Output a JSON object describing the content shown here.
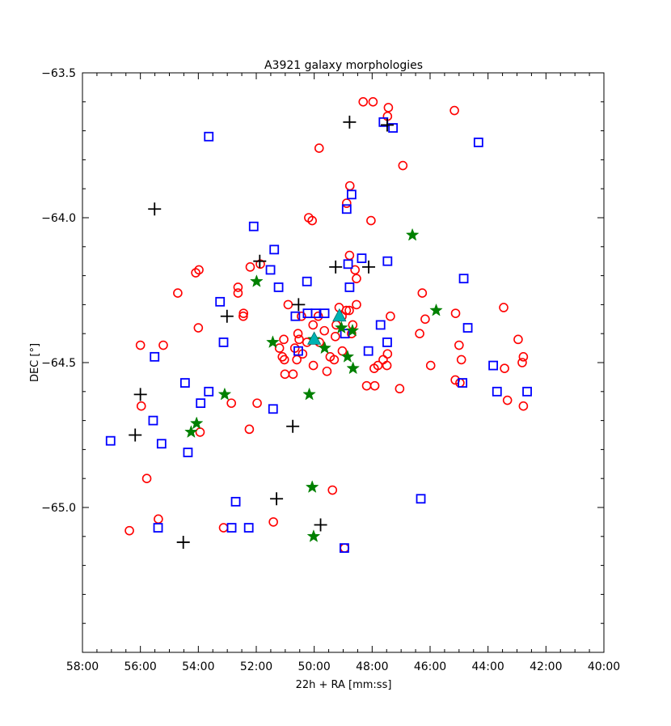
{
  "chart_data": {
    "type": "scatter",
    "title": "A3921 galaxy morphologies",
    "xlabel": "22h + RA [mm:ss]",
    "ylabel": "DEC [°]",
    "xlim_minutes": [
      58,
      40
    ],
    "ylim": [
      -65.5,
      -63.5
    ],
    "x_ticks": [
      {
        "value": 58,
        "label": "58:00"
      },
      {
        "value": 56,
        "label": "56:00"
      },
      {
        "value": 54,
        "label": "54:00"
      },
      {
        "value": 52,
        "label": "52:00"
      },
      {
        "value": 50,
        "label": "50:00"
      },
      {
        "value": 48,
        "label": "48:00"
      },
      {
        "value": 46,
        "label": "46:00"
      },
      {
        "value": 44,
        "label": "44:00"
      },
      {
        "value": 42,
        "label": "42:00"
      },
      {
        "value": 40,
        "label": "40:00"
      }
    ],
    "y_ticks": [
      {
        "value": -63.5,
        "label": "−63.5"
      },
      {
        "value": -64.0,
        "label": "−64.0"
      },
      {
        "value": -64.5,
        "label": "−64.5"
      },
      {
        "value": -65.0,
        "label": "−65.0"
      }
    ],
    "grid": false,
    "legend": "none",
    "series": [
      {
        "marker": "circle",
        "color": "#ff0000",
        "points": [
          [
            48.31,
            -63.6
          ],
          [
            47.97,
            -63.6
          ],
          [
            47.44,
            -63.62
          ],
          [
            47.47,
            -63.65
          ],
          [
            45.16,
            -63.63
          ],
          [
            49.83,
            -63.76
          ],
          [
            46.94,
            -63.82
          ],
          [
            48.77,
            -63.89
          ],
          [
            48.88,
            -63.95
          ],
          [
            50.19,
            -64.0
          ],
          [
            50.07,
            -64.01
          ],
          [
            48.04,
            -64.01
          ],
          [
            48.78,
            -64.13
          ],
          [
            51.86,
            -64.16
          ],
          [
            52.21,
            -64.17
          ],
          [
            53.98,
            -64.18
          ],
          [
            54.09,
            -64.19
          ],
          [
            48.59,
            -64.18
          ],
          [
            48.54,
            -64.21
          ],
          [
            52.63,
            -64.24
          ],
          [
            52.63,
            -64.26
          ],
          [
            54.71,
            -64.26
          ],
          [
            46.27,
            -64.26
          ],
          [
            50.9,
            -64.3
          ],
          [
            49.14,
            -64.31
          ],
          [
            48.89,
            -64.32
          ],
          [
            43.46,
            -64.31
          ],
          [
            52.44,
            -64.33
          ],
          [
            52.45,
            -64.34
          ],
          [
            50.44,
            -64.34
          ],
          [
            49.86,
            -64.34
          ],
          [
            49.04,
            -64.34
          ],
          [
            48.79,
            -64.32
          ],
          [
            48.54,
            -64.3
          ],
          [
            45.12,
            -64.33
          ],
          [
            47.37,
            -64.34
          ],
          [
            46.17,
            -64.35
          ],
          [
            49.24,
            -64.37
          ],
          [
            50.04,
            -64.37
          ],
          [
            48.67,
            -64.37
          ],
          [
            54.0,
            -64.38
          ],
          [
            49.65,
            -64.39
          ],
          [
            48.71,
            -64.4
          ],
          [
            50.56,
            -64.4
          ],
          [
            46.36,
            -64.4
          ],
          [
            49.27,
            -64.41
          ],
          [
            51.05,
            -64.42
          ],
          [
            50.52,
            -64.42
          ],
          [
            50.25,
            -64.43
          ],
          [
            49.82,
            -64.43
          ],
          [
            42.96,
            -64.42
          ],
          [
            56.0,
            -64.44
          ],
          [
            55.21,
            -64.44
          ],
          [
            51.2,
            -64.45
          ],
          [
            50.67,
            -64.45
          ],
          [
            49.03,
            -64.46
          ],
          [
            45.0,
            -64.44
          ],
          [
            50.4,
            -64.47
          ],
          [
            49.45,
            -64.48
          ],
          [
            47.47,
            -64.47
          ],
          [
            51.1,
            -64.48
          ],
          [
            51.03,
            -64.49
          ],
          [
            50.6,
            -64.49
          ],
          [
            49.31,
            -64.49
          ],
          [
            47.62,
            -64.49
          ],
          [
            44.92,
            -64.49
          ],
          [
            42.78,
            -64.48
          ],
          [
            50.03,
            -64.51
          ],
          [
            47.8,
            -64.51
          ],
          [
            47.49,
            -64.51
          ],
          [
            45.98,
            -64.51
          ],
          [
            43.43,
            -64.52
          ],
          [
            49.56,
            -64.53
          ],
          [
            47.93,
            -64.52
          ],
          [
            42.82,
            -64.5
          ],
          [
            51.01,
            -64.54
          ],
          [
            50.73,
            -64.54
          ],
          [
            45.13,
            -64.56
          ],
          [
            44.97,
            -64.57
          ],
          [
            48.19,
            -64.58
          ],
          [
            47.91,
            -64.58
          ],
          [
            47.05,
            -64.59
          ],
          [
            43.33,
            -64.63
          ],
          [
            52.86,
            -64.64
          ],
          [
            51.97,
            -64.64
          ],
          [
            42.78,
            -64.65
          ],
          [
            55.97,
            -64.65
          ],
          [
            52.24,
            -64.73
          ],
          [
            53.94,
            -64.74
          ],
          [
            55.78,
            -64.9
          ],
          [
            49.37,
            -64.94
          ],
          [
            55.38,
            -65.04
          ],
          [
            51.41,
            -65.05
          ],
          [
            53.13,
            -65.07
          ],
          [
            56.38,
            -65.08
          ],
          [
            48.95,
            -65.14
          ]
        ]
      },
      {
        "marker": "square",
        "color": "#0000ff",
        "points": [
          [
            53.64,
            -63.72
          ],
          [
            47.61,
            -63.67
          ],
          [
            47.28,
            -63.69
          ],
          [
            44.33,
            -63.74
          ],
          [
            48.71,
            -63.92
          ],
          [
            48.88,
            -63.97
          ],
          [
            52.09,
            -64.03
          ],
          [
            51.38,
            -64.11
          ],
          [
            48.36,
            -64.14
          ],
          [
            47.47,
            -64.15
          ],
          [
            48.83,
            -64.16
          ],
          [
            51.51,
            -64.18
          ],
          [
            48.78,
            -64.24
          ],
          [
            51.23,
            -64.24
          ],
          [
            50.25,
            -64.22
          ],
          [
            44.84,
            -64.21
          ],
          [
            53.25,
            -64.29
          ],
          [
            50.65,
            -64.34
          ],
          [
            50.23,
            -64.33
          ],
          [
            49.95,
            -64.33
          ],
          [
            49.64,
            -64.33
          ],
          [
            47.71,
            -64.37
          ],
          [
            44.7,
            -64.38
          ],
          [
            48.94,
            -64.4
          ],
          [
            53.13,
            -64.43
          ],
          [
            47.48,
            -64.43
          ],
          [
            50.55,
            -64.46
          ],
          [
            48.13,
            -64.46
          ],
          [
            55.51,
            -64.48
          ],
          [
            43.82,
            -64.51
          ],
          [
            54.46,
            -64.57
          ],
          [
            44.88,
            -64.57
          ],
          [
            53.64,
            -64.6
          ],
          [
            43.69,
            -64.6
          ],
          [
            42.65,
            -64.6
          ],
          [
            53.92,
            -64.64
          ],
          [
            51.42,
            -64.66
          ],
          [
            55.56,
            -64.7
          ],
          [
            57.03,
            -64.77
          ],
          [
            55.27,
            -64.78
          ],
          [
            54.36,
            -64.81
          ],
          [
            46.32,
            -64.97
          ],
          [
            52.71,
            -64.98
          ],
          [
            52.85,
            -65.07
          ],
          [
            52.26,
            -65.07
          ],
          [
            55.39,
            -65.07
          ],
          [
            48.96,
            -65.14
          ]
        ]
      },
      {
        "marker": "plus",
        "color": "#000000",
        "points": [
          [
            48.78,
            -63.67
          ],
          [
            47.48,
            -63.68
          ],
          [
            55.51,
            -63.97
          ],
          [
            51.88,
            -64.15
          ],
          [
            49.26,
            -64.17
          ],
          [
            48.12,
            -64.17
          ],
          [
            50.54,
            -64.3
          ],
          [
            53.01,
            -64.34
          ],
          [
            56.0,
            -64.61
          ],
          [
            56.18,
            -64.75
          ],
          [
            50.74,
            -64.72
          ],
          [
            51.3,
            -64.97
          ],
          [
            49.78,
            -65.06
          ],
          [
            54.52,
            -65.12
          ]
        ]
      },
      {
        "marker": "star",
        "color": "#008000",
        "points": [
          [
            46.61,
            -64.06
          ],
          [
            51.99,
            -64.22
          ],
          [
            45.79,
            -64.32
          ],
          [
            49.06,
            -64.38
          ],
          [
            48.68,
            -64.39
          ],
          [
            51.43,
            -64.43
          ],
          [
            50.01,
            -64.42
          ],
          [
            49.64,
            -64.45
          ],
          [
            48.85,
            -64.48
          ],
          [
            48.66,
            -64.52
          ],
          [
            50.17,
            -64.61
          ],
          [
            53.09,
            -64.61
          ],
          [
            54.06,
            -64.71
          ],
          [
            54.25,
            -64.74
          ],
          [
            50.07,
            -64.93
          ],
          [
            50.02,
            -65.1
          ]
        ]
      },
      {
        "marker": "triangle",
        "color": "#00b2b2",
        "points": [
          [
            49.13,
            -64.34
          ],
          [
            50.0,
            -64.42
          ]
        ]
      }
    ]
  }
}
